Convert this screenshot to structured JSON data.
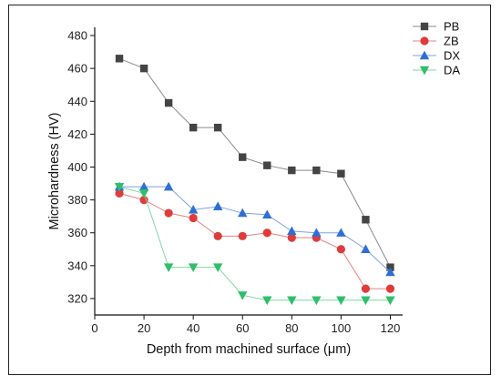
{
  "chart_data": {
    "type": "line",
    "title": "",
    "xlabel": "Depth from machined surface (μm)",
    "ylabel": "Microhardness (HV)",
    "xlim": [
      0,
      125
    ],
    "ylim": [
      310,
      485
    ],
    "xticks": [
      0,
      20,
      40,
      60,
      80,
      100,
      120
    ],
    "yticks": [
      320,
      340,
      360,
      380,
      400,
      420,
      440,
      460,
      480
    ],
    "grid": false,
    "legend_position": "top-right",
    "x": [
      10,
      20,
      30,
      40,
      50,
      60,
      70,
      80,
      90,
      100,
      110,
      120
    ],
    "series": [
      {
        "name": "PB",
        "marker": "square",
        "color": "#444444",
        "line_color": "#8a8a8a",
        "values": [
          466,
          460,
          439,
          424,
          424,
          406,
          401,
          398,
          398,
          396,
          368,
          339
        ]
      },
      {
        "name": "ZB",
        "marker": "circle",
        "color": "#e03b3b",
        "line_color": "#e88080",
        "values": [
          384,
          380,
          372,
          369,
          358,
          358,
          360,
          357,
          357,
          350,
          326,
          326
        ]
      },
      {
        "name": "DX",
        "marker": "triangle-up",
        "color": "#2e6fd6",
        "line_color": "#7aa3e6",
        "values": [
          388,
          388,
          388,
          374,
          376,
          372,
          371,
          361,
          360,
          360,
          350,
          336
        ]
      },
      {
        "name": "DA",
        "marker": "triangle-down",
        "color": "#2ebf6a",
        "line_color": "#7fd9a4",
        "values": [
          388,
          384,
          339,
          339,
          339,
          322,
          319,
          319,
          319,
          319,
          319,
          319
        ]
      }
    ]
  }
}
